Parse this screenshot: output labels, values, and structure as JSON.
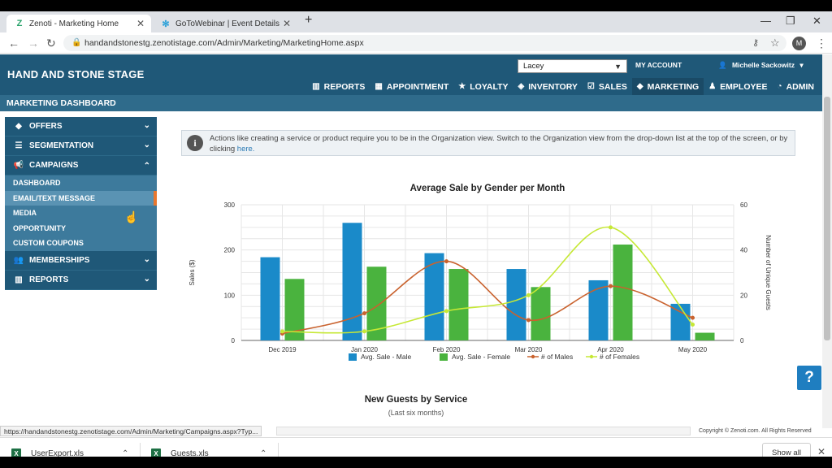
{
  "browser": {
    "tabs": [
      {
        "title": "Zenoti - Marketing Home",
        "icon": "zenoti-logo-icon"
      },
      {
        "title": "GoToWebinar | Event Details",
        "icon": "gotowebinar-icon"
      }
    ],
    "url": "handandstonestg.zenotistage.com/Admin/Marketing/MarketingHome.aspx",
    "profile_initial": "M"
  },
  "header": {
    "brand": "HAND AND STONE STAGE",
    "location": "Lacey",
    "my_account": "MY ACCOUNT",
    "user": "Michelle Sackowitz",
    "nav": [
      {
        "label": "REPORTS",
        "icon": "bar-chart-icon"
      },
      {
        "label": "APPOINTMENT",
        "icon": "calendar-icon"
      },
      {
        "label": "LOYALTY",
        "icon": "star-icon"
      },
      {
        "label": "INVENTORY",
        "icon": "cube-icon"
      },
      {
        "label": "SALES",
        "icon": "checkbox-icon"
      },
      {
        "label": "MARKETING",
        "icon": "tag-icon"
      },
      {
        "label": "EMPLOYEE",
        "icon": "person-icon"
      },
      {
        "label": "ADMIN",
        "icon": "dashboard-icon"
      }
    ],
    "active_nav": "MARKETING"
  },
  "dashboard_title": "MARKETING DASHBOARD",
  "sidebar": {
    "groups": [
      {
        "label": "OFFERS",
        "icon": "tag-icon"
      },
      {
        "label": "SEGMENTATION",
        "icon": "database-icon"
      },
      {
        "label": "CAMPAIGNS",
        "icon": "megaphone-icon"
      }
    ],
    "campaign_items": [
      "DASHBOARD",
      "EMAIL/TEXT MESSAGE",
      "MEDIA",
      "OPPORTUNITY",
      "CUSTOM COUPONS"
    ],
    "bottom_groups": [
      {
        "label": "MEMBERSHIPS",
        "icon": "users-icon"
      },
      {
        "label": "REPORTS",
        "icon": "bar-chart-icon"
      }
    ],
    "hovered_item": "EMAIL/TEXT MESSAGE"
  },
  "info": {
    "text": "Actions like creating a service or product require you to be in the Organization view. Switch to the Organization view from the drop-down list at the top of the screen, or by clicking ",
    "link": "here."
  },
  "chart_data": {
    "type": "bar",
    "title": "Average Sale by Gender per Month",
    "ylabel": "Sales ($)",
    "y2label": "Number of Unique Guests",
    "categories": [
      "Dec 2019",
      "Jan 2020",
      "Feb 2020",
      "Mar 2020",
      "Apr 2020",
      "May 2020"
    ],
    "ylim": [
      0,
      300
    ],
    "y2lim": [
      0,
      60
    ],
    "yticks": [
      0,
      100,
      200,
      300
    ],
    "y2ticks": [
      0,
      20,
      40,
      60
    ],
    "series": [
      {
        "name": "Avg. Sale - Male",
        "type": "bar",
        "axis": "left",
        "color": "#1a8ac9",
        "values": [
          184,
          260,
          193,
          158,
          133,
          81
        ]
      },
      {
        "name": "Avg. Sale - Female",
        "type": "bar",
        "axis": "left",
        "color": "#4ab33e",
        "values": [
          136,
          163,
          158,
          118,
          212,
          17
        ]
      },
      {
        "name": "# of Males",
        "type": "line",
        "axis": "right",
        "color": "#c9622e",
        "values": [
          3,
          12,
          35,
          9,
          24,
          10
        ]
      },
      {
        "name": "# of Females",
        "type": "line",
        "axis": "right",
        "color": "#c6e835",
        "values": [
          4,
          4,
          13,
          20,
          50,
          7
        ]
      }
    ],
    "legend": "bottom",
    "grid": true
  },
  "chart2": {
    "title": "New Guests by Service",
    "subtitle": "(Last six months)"
  },
  "status_url": "https://handandstonestg.zenotistage.com/Admin/Marketing/Campaigns.aspx?Typ...",
  "copyright": "Copyright © Zenoti.com. All Rights Reserved",
  "help_label": "?",
  "downloads": {
    "items": [
      "UserExport.xls",
      "Guests.xls"
    ],
    "show_all": "Show all"
  }
}
